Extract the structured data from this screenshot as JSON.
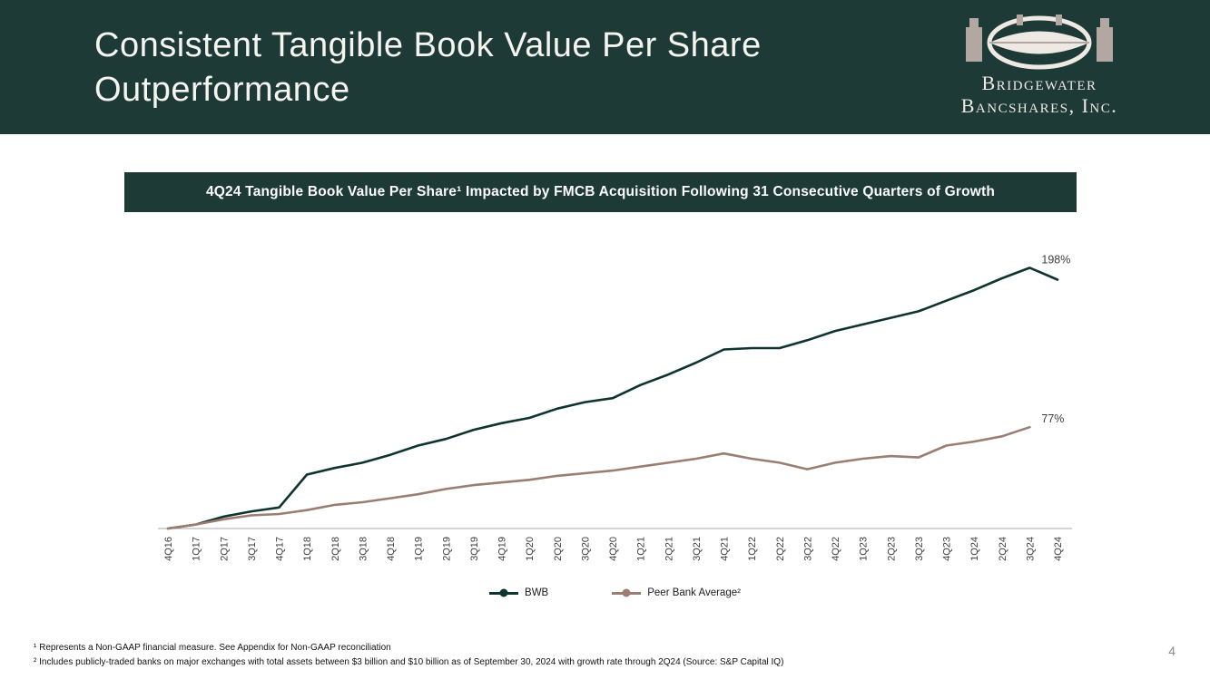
{
  "colors": {
    "header_bg": "#1d3a37",
    "banner_bg": "#1d3a37",
    "logo_light": "#efe9e3",
    "logo_taupe": "#b2a7a1",
    "axis_line": "#a8a8a8",
    "tick_text": "#3d3d3d"
  },
  "header": {
    "title": "Consistent Tangible Book Value Per Share Outperformance",
    "logo": {
      "line1": "Bridgewater",
      "line2": "Bancshares, Inc."
    }
  },
  "banner": {
    "text": "4Q24 Tangible Book Value Per Share¹ Impacted by FMCB Acquisition Following 31 Consecutive Quarters of Growth"
  },
  "chart_data": {
    "type": "line",
    "title": "",
    "xlabel": "",
    "ylabel": "",
    "grid": false,
    "legend_position": "bottom",
    "ylim": [
      0,
      210
    ],
    "categories": [
      "4Q16",
      "1Q17",
      "2Q17",
      "3Q17",
      "4Q17",
      "1Q18",
      "2Q18",
      "3Q18",
      "4Q18",
      "1Q19",
      "2Q19",
      "3Q19",
      "4Q19",
      "1Q20",
      "2Q20",
      "3Q20",
      "4Q20",
      "1Q21",
      "2Q21",
      "3Q21",
      "4Q21",
      "1Q22",
      "2Q22",
      "3Q22",
      "4Q22",
      "1Q23",
      "2Q23",
      "3Q23",
      "4Q23",
      "1Q24",
      "2Q24",
      "3Q24",
      "4Q24"
    ],
    "series": [
      {
        "name": "BWB",
        "color": "#0f332f",
        "values": [
          0,
          3,
          9,
          13,
          16,
          41,
          46,
          50,
          56,
          63,
          68,
          75,
          80,
          84,
          91,
          96,
          99,
          109,
          117,
          126,
          136,
          137,
          137,
          143,
          150,
          155,
          160,
          165,
          173,
          181,
          190,
          198,
          189
        ],
        "end_label": "198%",
        "end_label_index": 31
      },
      {
        "name": "Peer Bank Average²",
        "color": "#9b7e72",
        "values": [
          0,
          3,
          7,
          10,
          11,
          14,
          18,
          20,
          23,
          26,
          30,
          33,
          35,
          37,
          40,
          42,
          44,
          47,
          50,
          53,
          57,
          53,
          50,
          45,
          50,
          53,
          55,
          54,
          63,
          66,
          70,
          77
        ],
        "end_label": "77%",
        "end_label_index": 31
      }
    ]
  },
  "footnotes": [
    "¹ Represents a Non-GAAP financial measure. See Appendix for Non-GAAP reconciliation",
    "² Includes publicly-traded banks on major exchanges with total assets between $3 billion and $10 billion as of September 30, 2024 with growth rate through 2Q24 (Source: S&P Capital IQ)"
  ],
  "page_number": "4"
}
